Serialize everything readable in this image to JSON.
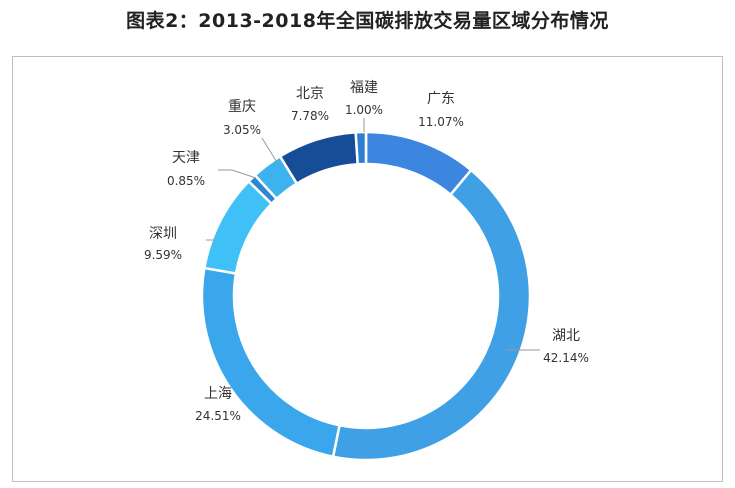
{
  "title": "图表2：2013-2018年全国碳排放交易量区域分布情况",
  "colors": {
    "primary": "#3f9fe6"
  },
  "chart_data": {
    "type": "pie",
    "title": "图表2：2013-2018年全国碳排放交易量区域分布情况",
    "donut": true,
    "slices": [
      {
        "label": "广东",
        "value": 11.07,
        "display": "11.07%",
        "color": "#3d86e0"
      },
      {
        "label": "湖北",
        "value": 42.14,
        "display": "42.14%",
        "color": "#3fa0e6"
      },
      {
        "label": "上海",
        "value": 24.51,
        "display": "24.51%",
        "color": "#3aa6ec"
      },
      {
        "label": "深圳",
        "value": 9.59,
        "display": "9.59%",
        "color": "#3fc0f6"
      },
      {
        "label": "天津",
        "value": 0.85,
        "display": "0.85%",
        "color": "#2f86d2"
      },
      {
        "label": "重庆",
        "value": 3.05,
        "display": "3.05%",
        "color": "#3db2ee"
      },
      {
        "label": "北京",
        "value": 7.78,
        "display": "7.78%",
        "color": "#174d97"
      },
      {
        "label": "福建",
        "value": 1.0,
        "display": "1.00%",
        "color": "#2e7fd0"
      }
    ]
  }
}
